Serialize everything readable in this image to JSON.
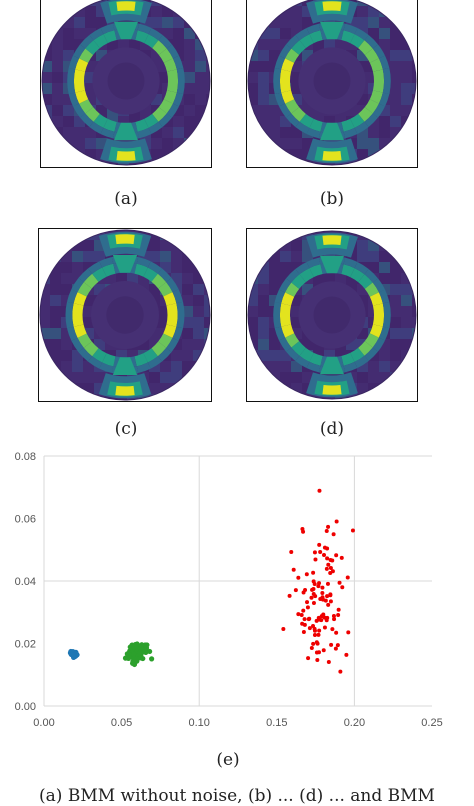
{
  "panels": [
    {
      "id": "a",
      "caption": "(a)"
    },
    {
      "id": "b",
      "caption": "(b)"
    },
    {
      "id": "c",
      "caption": "(c)"
    },
    {
      "id": "d",
      "caption": "(d)"
    }
  ],
  "heatmap_colors": {
    "background": "#3c2a66",
    "dark": "#46286e",
    "mid": "#2f6d8e",
    "teal": "#22a085",
    "green": "#6cc55a",
    "yellow": "#e3e31e"
  },
  "scatter_caption": "(e)",
  "bottom_caption": "(a) BMM without noise, (b) ... (d) ... and BMM",
  "chart_data": {
    "type": "scatter",
    "title": "",
    "xlabel": "",
    "ylabel": "",
    "xlim": [
      0,
      0.25
    ],
    "ylim": [
      0,
      0.08
    ],
    "xticks": [
      "0.00",
      "0.05",
      "0.10",
      "0.15",
      "0.20",
      "0.25"
    ],
    "yticks": [
      "0.00",
      "0.02",
      "0.04",
      "0.06",
      "0.08"
    ],
    "grid": true,
    "legend": "none",
    "series": [
      {
        "color": "#1f77b4",
        "center": [
          0.019,
          0.0165
        ],
        "spread": [
          0.001,
          0.0005
        ],
        "count": 25
      },
      {
        "color": "#2ca02c",
        "center": [
          0.06,
          0.0172
        ],
        "spread": [
          0.003,
          0.0014
        ],
        "count": 90
      },
      {
        "color": "#ee0000",
        "center": [
          0.178,
          0.033
        ],
        "spread": [
          0.009,
          0.01
        ],
        "count": 110
      }
    ]
  }
}
